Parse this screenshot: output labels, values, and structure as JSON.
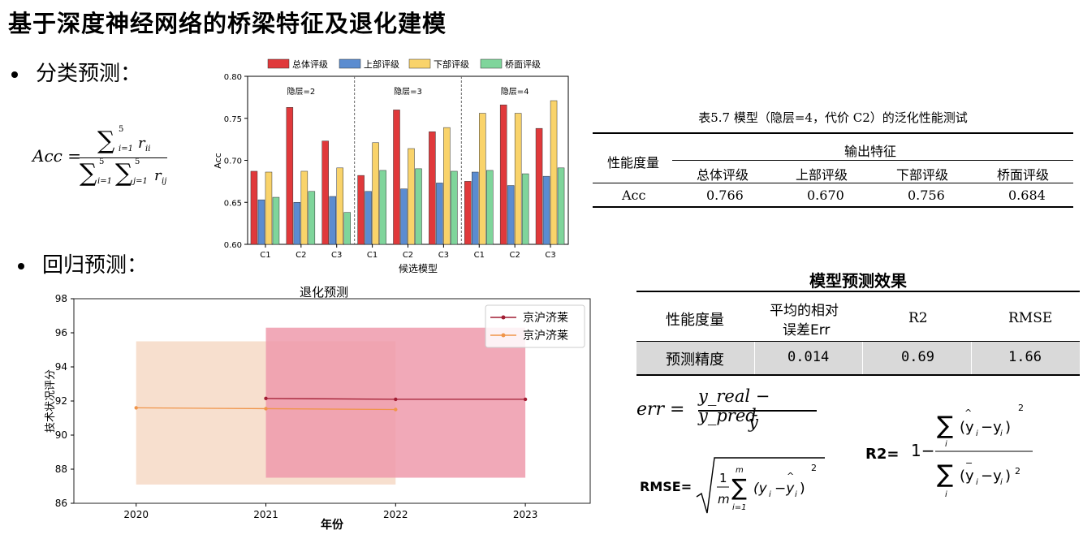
{
  "title": "基于深度神经网络的桥梁特征及退化建模",
  "section_classification": "分类预测：",
  "section_regression": "回归预测：",
  "acc_formula": {
    "lhs": "Acc =",
    "sum_upper": "5",
    "sum_lower_i": "i=1",
    "sum_lower_j": "j=1",
    "numerator_term": "r",
    "numerator_sub": "ii",
    "denominator_term": "r",
    "denominator_sub": "ij"
  },
  "table57": {
    "caption": "表5.7 模型（隐层=4，代价 C2）的泛化性能测试",
    "row_header": "性能度量",
    "group_header": "输出特征",
    "columns": [
      "总体评级",
      "上部评级",
      "下部评级",
      "桥面评级"
    ],
    "row_label": "Acc",
    "values": [
      "0.766",
      "0.670",
      "0.756",
      "0.684"
    ]
  },
  "table_effect": {
    "title": "模型预测效果",
    "headers": [
      "性能度量",
      "平均的相对",
      "误差Err",
      "R2",
      "RMSE"
    ],
    "row_label": "预测精度",
    "values": [
      "0.014",
      "0.69",
      "1.66"
    ]
  },
  "formulas": {
    "err_lhs": "err =",
    "err_num": "y_real − y_pred",
    "err_den": "ȳ",
    "rmse_label": "RMSE=",
    "r2_label": "R2="
  },
  "chart_data": [
    {
      "type": "bar",
      "xlabel": "候选模型",
      "ylabel": "Acc",
      "ylim": [
        0.6,
        0.8
      ],
      "yticks": [
        "0.60",
        "0.65",
        "0.70",
        "0.75",
        "0.80"
      ],
      "groups": [
        {
          "label": "隐层=2",
          "categories": [
            "C1",
            "C2",
            "C3"
          ]
        },
        {
          "label": "隐层=3",
          "categories": [
            "C1",
            "C2",
            "C3"
          ]
        },
        {
          "label": "隐层=4",
          "categories": [
            "C1",
            "C2",
            "C3"
          ]
        }
      ],
      "series": [
        {
          "name": "总体评级",
          "color": "#e0393b",
          "values": [
            0.687,
            0.763,
            0.723,
            0.682,
            0.76,
            0.734,
            0.675,
            0.766,
            0.738
          ]
        },
        {
          "name": "上部评级",
          "color": "#5b8cd0",
          "values": [
            0.653,
            0.65,
            0.657,
            0.663,
            0.666,
            0.673,
            0.686,
            0.67,
            0.681
          ]
        },
        {
          "name": "下部评级",
          "color": "#f9d36a",
          "values": [
            0.686,
            0.687,
            0.691,
            0.721,
            0.714,
            0.739,
            0.756,
            0.756,
            0.771
          ]
        },
        {
          "name": "桥面评级",
          "color": "#7fd59b",
          "values": [
            0.656,
            0.663,
            0.638,
            0.688,
            0.69,
            0.687,
            0.688,
            0.684,
            0.691
          ]
        }
      ],
      "legend": "top"
    },
    {
      "type": "line",
      "title": "退化预测",
      "xlabel": "年份",
      "ylabel": "技术状况评分",
      "x_ticks": [
        "2020",
        "2021",
        "2022",
        "2023"
      ],
      "y_ticks": [
        "86",
        "88",
        "90",
        "92",
        "94",
        "96",
        "98"
      ],
      "ylim": [
        86,
        98
      ],
      "xlim": [
        2019.52,
        2023.5
      ],
      "series": [
        {
          "name": "京沪济莱",
          "color": "#a11d33",
          "band_color": "#ee9aab",
          "x": [
            2021,
            2022,
            2023
          ],
          "y": [
            92.15,
            92.1,
            92.1
          ],
          "band": [
            87.5,
            96.3
          ]
        },
        {
          "name": "京沪济莱",
          "color": "#f0954a",
          "band_color": "#f6d9c6",
          "x": [
            2020,
            2021,
            2022
          ],
          "y": [
            91.6,
            91.55,
            91.5
          ],
          "band": [
            87.1,
            95.5
          ]
        }
      ],
      "legend": "top-right"
    }
  ]
}
